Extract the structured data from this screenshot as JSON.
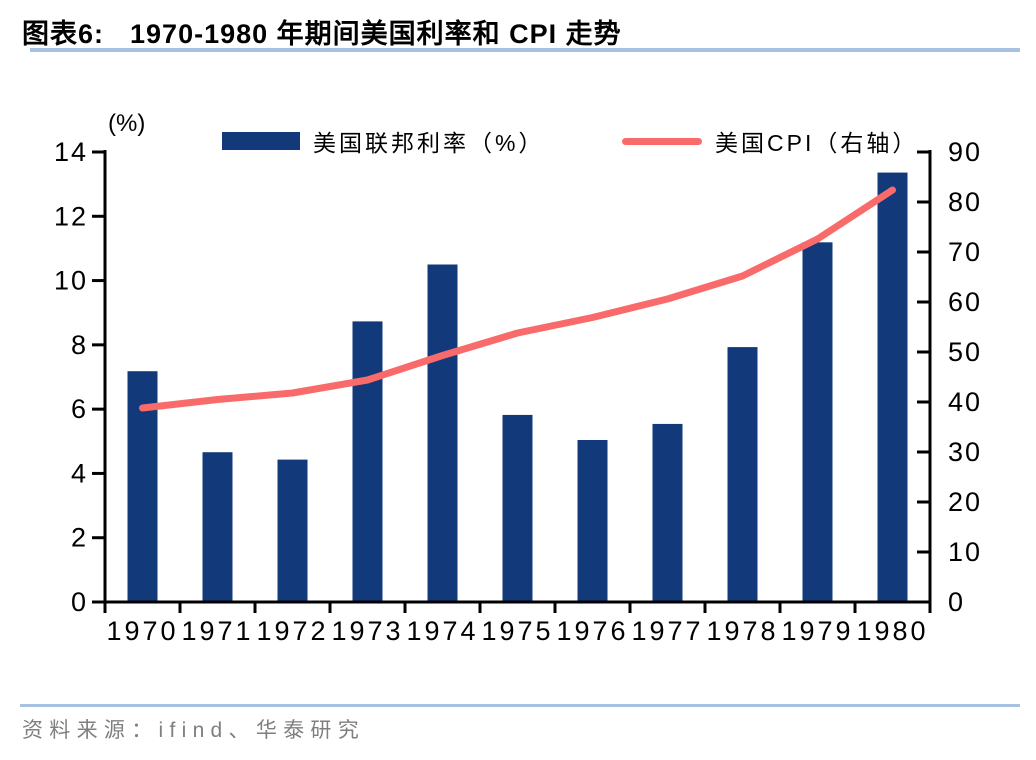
{
  "header": {
    "label": "图表6:",
    "title": "1970-1980 年期间美国利率和 CPI 走势"
  },
  "footer": {
    "source": "资料来源：ifind、华泰研究"
  },
  "colors": {
    "bar": "#123a7b",
    "line": "#f96b6b",
    "rule": "#a6c2e0",
    "axis": "#000000",
    "footer_text": "#7f7f7f"
  },
  "chart_data": {
    "type": "bar",
    "subtype": "bar-and-line-dual-axis",
    "categories": [
      "1970",
      "1971",
      "1972",
      "1973",
      "1974",
      "1975",
      "1976",
      "1977",
      "1978",
      "1979",
      "1980"
    ],
    "series": [
      {
        "name": "美国联邦利率（%）",
        "type": "bar",
        "axis": "left",
        "color": "#123a7b",
        "values": [
          7.18,
          4.66,
          4.43,
          8.73,
          10.5,
          5.82,
          5.04,
          5.54,
          7.93,
          11.19,
          13.36
        ]
      },
      {
        "name": "美国CPI（右轴）",
        "type": "line",
        "axis": "right",
        "color": "#f96b6b",
        "values": [
          38.8,
          40.5,
          41.8,
          44.4,
          49.3,
          53.8,
          56.9,
          60.6,
          65.2,
          72.6,
          82.4
        ]
      }
    ],
    "left_axis": {
      "label": "(%)",
      "min": 0,
      "max": 14,
      "step": 2,
      "ticks": [
        0,
        2,
        4,
        6,
        8,
        10,
        12,
        14
      ]
    },
    "right_axis": {
      "label": "",
      "min": 0,
      "max": 90,
      "step": 10,
      "ticks": [
        0,
        10,
        20,
        30,
        40,
        50,
        60,
        70,
        80,
        90
      ]
    },
    "legend_position": "top",
    "grid": false
  }
}
